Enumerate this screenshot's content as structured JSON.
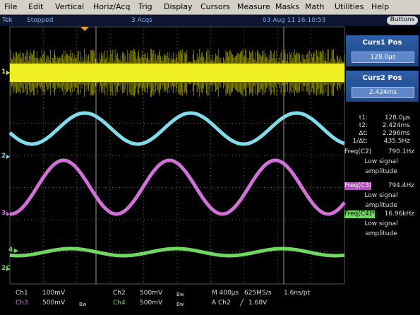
{
  "menu": [
    "File",
    "Edit",
    "Vertical",
    "Horiz/Acq",
    "Trig",
    "Display",
    "Cursors",
    "Measure",
    "Masks",
    "Math",
    "Utilities",
    "Help"
  ],
  "status_bar": {
    "brand": "Tek",
    "state": "Stopped",
    "acquisitions": "3 Acqs",
    "timestamp": "03 Aug 11 16:10:53",
    "button": "Buttons"
  },
  "channel_markers": [
    "1",
    "2",
    "3",
    "4",
    "2C"
  ],
  "cursor_panel": [
    {
      "title": "Curs1 Pos",
      "value": "128.0µs"
    },
    {
      "title": "Curs2 Pos",
      "value": "2.424ms"
    }
  ],
  "cursor_readout": [
    {
      "label": "t1:",
      "value": "128.0µs"
    },
    {
      "label": "t2:",
      "value": "2.424ms"
    },
    {
      "label": "Δt:",
      "value": "2.296ms"
    },
    {
      "label": "1/Δt:",
      "value": "435.5Hz"
    }
  ],
  "measurements": [
    {
      "label": "Freq(C2)",
      "value": "790.1Hz",
      "note": "Low signal amplitude"
    },
    {
      "label": "Freq(C3)",
      "value": "794.4Hz",
      "note": "Low signal amplitude"
    },
    {
      "label": "Freq(C4)*",
      "value": "16.96kHz",
      "note": "Low signal amplitude"
    }
  ],
  "channel_settings": [
    {
      "channel": "Ch1",
      "scale": "100mV"
    },
    {
      "channel": "Ch2",
      "scale": "500mV",
      "bandwidth": "Bw"
    },
    {
      "channel": "Ch3",
      "scale": "500mV",
      "bandwidth": "Bw"
    },
    {
      "channel": "Ch4",
      "scale": "500mV",
      "bandwidth": "Bw"
    }
  ],
  "timebase": {
    "scale": "M 400µs",
    "rate": "625MS/s",
    "resolution": "1.6ns/pt"
  },
  "trigger": {
    "source": "A Ch2",
    "slope": "╱",
    "level": "1.68V"
  }
}
